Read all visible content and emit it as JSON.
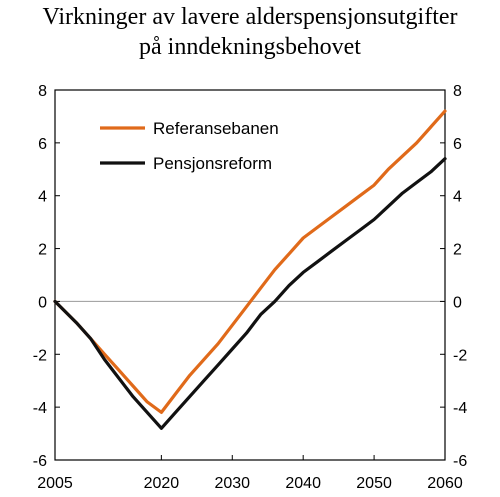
{
  "title_line1": "Virkninger av lavere alderspensjonsutgifter",
  "title_line2": "på inndekningsbehovet",
  "chart_data": {
    "type": "line",
    "xlim": [
      2005,
      2060
    ],
    "ylim": [
      -6,
      8
    ],
    "x_ticks": [
      2005,
      2020,
      2030,
      2040,
      2050,
      2060
    ],
    "y_ticks": [
      -6,
      -4,
      -2,
      0,
      2,
      4,
      6,
      8
    ],
    "grid": false,
    "zero_line": true,
    "legend_position": "upper-left",
    "series": [
      {
        "name": "Referansebanen",
        "color": "#e06a1a",
        "x": [
          2005,
          2008,
          2010,
          2012,
          2014,
          2016,
          2018,
          2020,
          2022,
          2024,
          2026,
          2028,
          2030,
          2032,
          2034,
          2036,
          2038,
          2040,
          2042,
          2044,
          2046,
          2048,
          2050,
          2052,
          2054,
          2056,
          2058,
          2060
        ],
        "y": [
          0,
          -0.8,
          -1.4,
          -2.0,
          -2.6,
          -3.2,
          -3.8,
          -4.2,
          -3.5,
          -2.8,
          -2.2,
          -1.6,
          -0.9,
          -0.2,
          0.5,
          1.2,
          1.8,
          2.4,
          2.8,
          3.2,
          3.6,
          4.0,
          4.4,
          5.0,
          5.5,
          6.0,
          6.6,
          7.2
        ],
        "values": [
          0,
          -0.8,
          -1.4,
          -2.0,
          -2.6,
          -3.2,
          -3.8,
          -4.2,
          -3.5,
          -2.8,
          -2.2,
          -1.6,
          -0.9,
          -0.2,
          0.5,
          1.2,
          1.8,
          2.4,
          2.8,
          3.2,
          3.6,
          4.0,
          4.4,
          5.0,
          5.5,
          6.0,
          6.6,
          7.2
        ]
      },
      {
        "name": "Pensjonsreform",
        "color": "#111111",
        "x": [
          2005,
          2008,
          2010,
          2012,
          2014,
          2016,
          2018,
          2020,
          2022,
          2024,
          2026,
          2028,
          2030,
          2032,
          2034,
          2036,
          2038,
          2040,
          2042,
          2044,
          2046,
          2048,
          2050,
          2052,
          2054,
          2056,
          2058,
          2060
        ],
        "y": [
          0,
          -0.8,
          -1.4,
          -2.2,
          -2.9,
          -3.6,
          -4.2,
          -4.8,
          -4.2,
          -3.6,
          -3.0,
          -2.4,
          -1.8,
          -1.2,
          -0.5,
          0.0,
          0.6,
          1.1,
          1.5,
          1.9,
          2.3,
          2.7,
          3.1,
          3.6,
          4.1,
          4.5,
          4.9,
          5.4
        ],
        "values": [
          0,
          -0.8,
          -1.4,
          -2.2,
          -2.9,
          -3.6,
          -4.2,
          -4.8,
          -4.2,
          -3.6,
          -3.0,
          -2.4,
          -1.8,
          -1.2,
          -0.5,
          0.0,
          0.6,
          1.1,
          1.5,
          1.9,
          2.3,
          2.7,
          3.1,
          3.6,
          4.1,
          4.5,
          4.9,
          5.4
        ]
      }
    ]
  }
}
